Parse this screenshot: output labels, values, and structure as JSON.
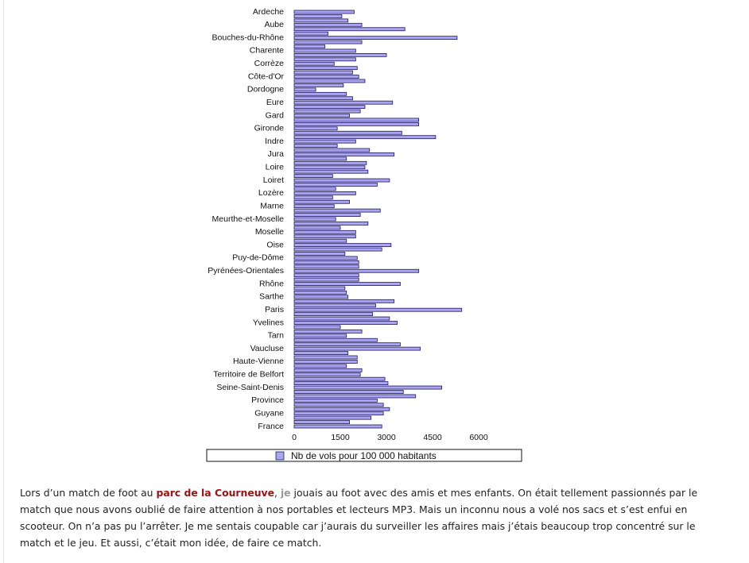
{
  "chart_data": {
    "type": "bar",
    "orientation": "horizontal",
    "categories": [
      "Ardeche",
      null,
      null,
      "Aube",
      null,
      null,
      "Bouches-du-Rhône",
      null,
      null,
      "Charente",
      null,
      null,
      "Corrèze",
      null,
      null,
      "Côte-d'Or",
      null,
      null,
      "Dordogne",
      null,
      null,
      "Eure",
      null,
      null,
      "Gard",
      null,
      null,
      "Gironde",
      null,
      null,
      "Indre",
      null,
      null,
      "Jura",
      null,
      null,
      "Loire",
      null,
      null,
      "Loiret",
      null,
      null,
      "Lozère",
      null,
      null,
      "Marne",
      null,
      null,
      "Meurthe-et-Moselle",
      null,
      null,
      "Moselle",
      null,
      null,
      "Oise",
      null,
      null,
      "Puy-de-Dôme",
      null,
      null,
      "Pyrénées-Orientales",
      null,
      null,
      "Rhône",
      null,
      null,
      "Sarthe",
      null,
      null,
      "Paris",
      null,
      null,
      "Yvelines",
      null,
      null,
      "Tarn",
      null,
      null,
      "Vaucluse",
      null,
      null,
      "Haute-Vienne",
      null,
      null,
      "Territoire de Belfort",
      null,
      null,
      "Seine-Saint-Denis",
      null,
      null,
      "Province",
      null,
      null,
      "Guyane",
      null,
      null,
      "France"
    ],
    "series": [
      {
        "name": "Nb de vols pour 100 000 habitants",
        "color": "#aba4ee",
        "values": [
          1950,
          1550,
          1750,
          2200,
          3600,
          1100,
          5300,
          2200,
          1000,
          2000,
          3000,
          2000,
          1300,
          2050,
          1900,
          2100,
          2300,
          1600,
          700,
          1700,
          1900,
          3200,
          2300,
          2150,
          1800,
          4050,
          4050,
          1400,
          3500,
          4600,
          2000,
          1400,
          2450,
          3250,
          1700,
          2350,
          2300,
          2400,
          1250,
          3100,
          2700,
          1350,
          2000,
          1250,
          1800,
          1300,
          2800,
          2150,
          1350,
          2400,
          1500,
          2000,
          2000,
          1700,
          3150,
          2850,
          1650,
          2050,
          2100,
          2100,
          4050,
          2100,
          2100,
          3450,
          1650,
          1700,
          1750,
          3250,
          2650,
          5450,
          2550,
          3100,
          3350,
          1500,
          2200,
          1700,
          2700,
          3450,
          4100,
          1750,
          2050,
          2050,
          1700,
          2200,
          2150,
          2950,
          3050,
          4800,
          3550,
          3950,
          2700,
          2900,
          3100,
          2900,
          2500,
          1800,
          2850
        ]
      }
    ],
    "xlim": [
      0,
      6000
    ],
    "xticks": [
      0,
      1500,
      3000,
      4500,
      6000
    ],
    "grid": false,
    "legend": "bottom"
  },
  "paragraph": {
    "before": "Lors d’un match de foot au ",
    "link": "parc de la Courneuve",
    "middle": ", ",
    "highlight": "je",
    "after": " jouais au foot avec des amis et mes enfants. On était tellement passionnés par le match  que nous avons oublié de faire attention à nos portables et lecteurs MP3. Mais un inconnu nous a volé nos sacs et s’est enfui en scooteur. On n’a pas pu l’arrêter. Je me sentais coupable car j’aurais du surveiller les affaires mais j’étais beaucoup trop concentré sur le match et le jeu. Et aussi, c’était mon idée, de faire ce match."
  }
}
